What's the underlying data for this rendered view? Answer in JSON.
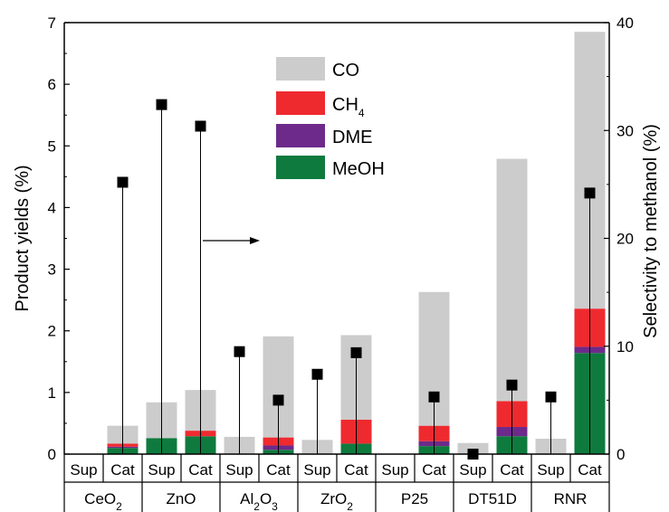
{
  "colors": {
    "CO": "#cccccc",
    "CH4": "#ee2a2f",
    "DME": "#6d2a8a",
    "MeOH": "#0f7a3e",
    "marker": "#000000",
    "axis": "#000000"
  },
  "chart_data": {
    "type": "bar",
    "stacked": true,
    "ylabel": "Product yields (%)",
    "y2label": "Selectivity to methanol (%)",
    "ylim": [
      0,
      7
    ],
    "y2lim": [
      0,
      40
    ],
    "y_ticks": [
      "0",
      "1",
      "2",
      "3",
      "4",
      "5",
      "6",
      "7"
    ],
    "y2_ticks": [
      "0",
      "10",
      "20",
      "30",
      "40"
    ],
    "legend": {
      "placement": "top-center",
      "entries": [
        {
          "key": "CO",
          "label": "CO"
        },
        {
          "key": "CH4",
          "label": "CH",
          "sub": "4"
        },
        {
          "key": "DME",
          "label": "DME"
        },
        {
          "key": "MeOH",
          "label": "MeOH"
        }
      ]
    },
    "groups": [
      {
        "label": "CeO",
        "sub": "2",
        "suffix": ""
      },
      {
        "label": "ZnO",
        "sub": "",
        "suffix": ""
      },
      {
        "label": "Al",
        "sub": "2",
        "mid": "O",
        "sub2": "3"
      },
      {
        "label": "ZrO",
        "sub": "2",
        "suffix": ""
      },
      {
        "label": "P25",
        "sub": "",
        "suffix": ""
      },
      {
        "label": "DT51D",
        "sub": "",
        "suffix": ""
      },
      {
        "label": "RNR",
        "sub": "",
        "suffix": ""
      }
    ],
    "categories": [
      "Sup",
      "Cat",
      "Sup",
      "Cat",
      "Sup",
      "Cat",
      "Sup",
      "Cat",
      "Sup",
      "Cat",
      "Sup",
      "Cat",
      "Sup",
      "Cat"
    ],
    "series": [
      {
        "name": "MeOH",
        "values": [
          0,
          0.1,
          0.26,
          0.29,
          0,
          0.07,
          0,
          0.17,
          0,
          0.13,
          0,
          0.29,
          0,
          1.64
        ]
      },
      {
        "name": "DME",
        "values": [
          0,
          0.02,
          0,
          0,
          0,
          0.07,
          0,
          0,
          0,
          0.08,
          0,
          0.15,
          0,
          0.1
        ]
      },
      {
        "name": "CH4",
        "values": [
          0,
          0.05,
          0,
          0.09,
          0,
          0.13,
          0,
          0.39,
          0,
          0.25,
          0,
          0.42,
          0,
          0.62
        ]
      },
      {
        "name": "CO",
        "values": [
          0,
          0.29,
          0.58,
          0.66,
          0.28,
          1.64,
          0.23,
          1.37,
          0,
          2.17,
          0.18,
          3.93,
          0.25,
          4.49
        ]
      }
    ],
    "selectivity_to_methanol": [
      null,
      25.2,
      32.4,
      30.4,
      9.5,
      5.0,
      7.4,
      9.4,
      null,
      5.3,
      0.0,
      6.4,
      5.3,
      24.2
    ],
    "annotation": "arrow pointing to right axis"
  }
}
